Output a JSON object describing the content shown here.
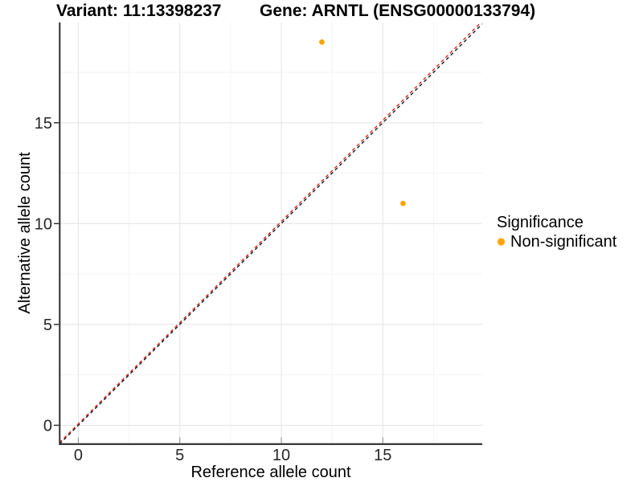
{
  "header": {
    "variant_title": "Variant: 11:13398237",
    "gene_title": "Gene: ARNTL (ENSG00000133794)"
  },
  "chart_data": {
    "type": "scatter",
    "xlabel": "Reference allele count",
    "ylabel": "Alternative allele count",
    "xlim": [
      -0.93,
      19.9
    ],
    "ylim": [
      -0.94,
      19.97
    ],
    "x_ticks": [
      0,
      5,
      10,
      15
    ],
    "y_ticks": [
      0,
      5,
      10,
      15
    ],
    "x_minor_ticks": [
      2.5,
      7.5,
      12.5,
      17.5
    ],
    "y_minor_ticks": [
      2.5,
      7.5,
      12.5,
      17.5
    ],
    "grid": "major+minor",
    "legend_position": "right-middle",
    "series": [
      {
        "name": "Non-significant",
        "color": "#FFA500",
        "points": [
          [
            12,
            19
          ],
          [
            16,
            11
          ]
        ]
      }
    ],
    "reference_lines": [
      {
        "name": "identity-line",
        "color": "#1A1A1A",
        "style": "dashed",
        "from": [
          -0.93,
          -0.93
        ],
        "to": [
          19.9,
          19.9
        ]
      },
      {
        "name": "overlay-line",
        "color": "#D42B22",
        "style": "dashed",
        "from": [
          -0.93,
          -0.86
        ],
        "to": [
          19.9,
          20.04
        ]
      }
    ],
    "legend": {
      "title": "Significance",
      "entries": [
        {
          "label": "Non-significant",
          "color": "#FFA500"
        }
      ]
    },
    "colors": {
      "grid_major": "#E6E6E6",
      "grid_minor": "#F3F3F3",
      "axis_line": "#2B2B2B",
      "tick_label": "#262626",
      "inner_tick": "#999999",
      "outer_tick": "#333333"
    }
  }
}
